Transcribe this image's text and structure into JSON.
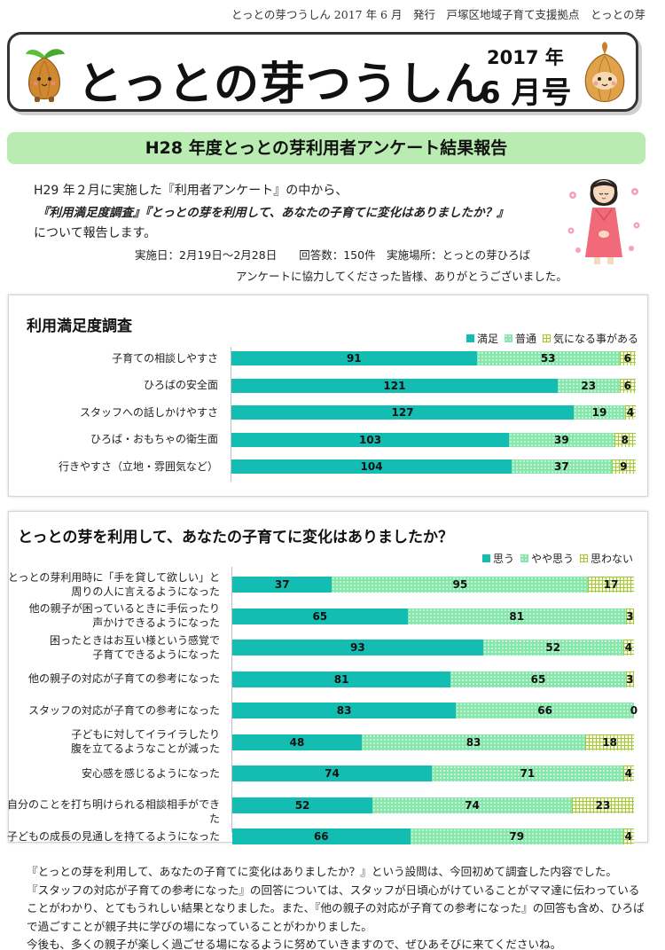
{
  "header": {
    "topline": "とっとの芽つうしん 2017 年 6 月　発行　戸塚区地域子育て支援拠点　とっとの芽",
    "title": "とっとの芽つうしん",
    "year": "2017 年",
    "month": "6 月号"
  },
  "report": {
    "banner": "H28 年度とっとの芽利用者アンケート結果報告",
    "intro_1": "H29 年２月に実施した『利用者アンケート』の中から、",
    "intro_2": "『利用満足度調査』『とっとの芽を利用して、あなたの子育てに変化はありましたか？』",
    "intro_3": "について報告します。",
    "survey_info": "実施日：2月19日～2月28日　　回答数：150件　実施場所：とっとの芽ひろば",
    "thanks": "アンケートに協力してくださった皆様、ありがとうございました。"
  },
  "chart_data": [
    {
      "type": "bar",
      "orientation": "horizontal",
      "stacked": true,
      "title": "利用満足度調査",
      "legend_position": "top-right",
      "categories": [
        "子育ての相談しやすさ",
        "ひろばの安全面",
        "スタッフへの話しかけやすさ",
        "ひろば・おもちゃの衛生面",
        "行きやすさ（立地・雰囲気など）"
      ],
      "series": [
        {
          "name": "満足",
          "values": [
            91,
            121,
            127,
            103,
            104
          ],
          "color": "#13bdb2"
        },
        {
          "name": "普通",
          "values": [
            53,
            23,
            19,
            39,
            37
          ],
          "color": "#86e6ab"
        },
        {
          "name": "気になる事がある",
          "values": [
            6,
            6,
            4,
            8,
            9
          ],
          "color": "#a7c43a"
        }
      ],
      "xlim": [
        0,
        150
      ]
    },
    {
      "type": "bar",
      "orientation": "horizontal",
      "stacked": true,
      "title": "とっとの芽を利用して、あなたの子育てに変化はありましたか？",
      "legend_position": "top-right",
      "categories": [
        [
          "とっとの芽利用時に「手を貸して欲しい」と",
          "周りの人に言えるようになった"
        ],
        [
          "他の親子が困っているときに手伝ったり",
          "声かけできるようになった"
        ],
        [
          "困ったときはお互い様という感覚で",
          "子育てできるようになった"
        ],
        [
          "他の親子の対応が子育ての参考になった"
        ],
        [
          "スタッフの対応が子育ての参考になった"
        ],
        [
          "子どもに対してイライラしたり",
          "腹を立てるようなことが減った"
        ],
        [
          "安心感を感じるようになった"
        ],
        [
          "自分のことを打ち明けられる相談相手ができた"
        ],
        [
          "子どもの成長の見通しを持てるようになった"
        ]
      ],
      "series": [
        {
          "name": "思う",
          "values": [
            37,
            65,
            93,
            81,
            83,
            48,
            74,
            52,
            66
          ],
          "color": "#13bdb2"
        },
        {
          "name": "やや思う",
          "values": [
            95,
            81,
            52,
            65,
            66,
            83,
            71,
            74,
            79
          ],
          "color": "#86e6ab"
        },
        {
          "name": "思わない",
          "values": [
            17,
            3,
            4,
            3,
            0,
            18,
            4,
            23,
            4
          ],
          "color": "#a7c43a"
        }
      ],
      "xlim": [
        0,
        150
      ]
    }
  ],
  "closing": {
    "p1": "『とっとの芽を利用して、あなたの子育てに変化はありましたか？』という設問は、今回初めて調査した内容でした。",
    "p2": "『スタッフの対応が子育ての参考になった』の回答については、スタッフが日頃心がけていることがママ達に伝わっていることがわかり、とてもうれしい結果となりました。また、『他の親子の対応が子育ての参考になった』の回答も含め、ひろばで過ごすことが親子共に学びの場になっていることがわかりました。",
    "p3": "今後も、多くの親子が楽しく過ごせる場になるように努めていきますので、ぜひあそびに来てくださいね。"
  },
  "icons": [
    "onion-mascot-left-icon",
    "onion-mascot-right-icon",
    "woman-bowing-icon",
    "flower-icon"
  ]
}
